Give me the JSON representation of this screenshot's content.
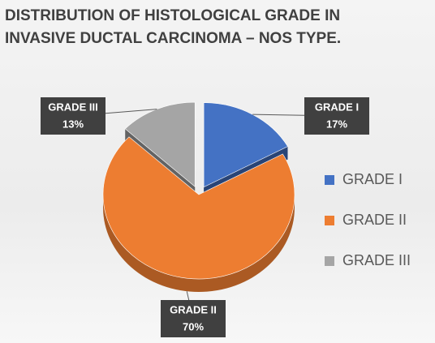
{
  "chart_data": {
    "type": "pie",
    "title": "DISTRIBUTION OF HISTOLOGICAL GRADE IN INVASIVE DUCTAL CARCINOMA – NOS TYPE.",
    "categories": [
      "GRADE I",
      "GRADE II",
      "GRADE III"
    ],
    "values": [
      17,
      70,
      13
    ],
    "value_labels": [
      "17%",
      "70%",
      "13%"
    ],
    "colors": [
      "#4472c4",
      "#ed7d31",
      "#a5a5a5"
    ],
    "legend": "right"
  }
}
